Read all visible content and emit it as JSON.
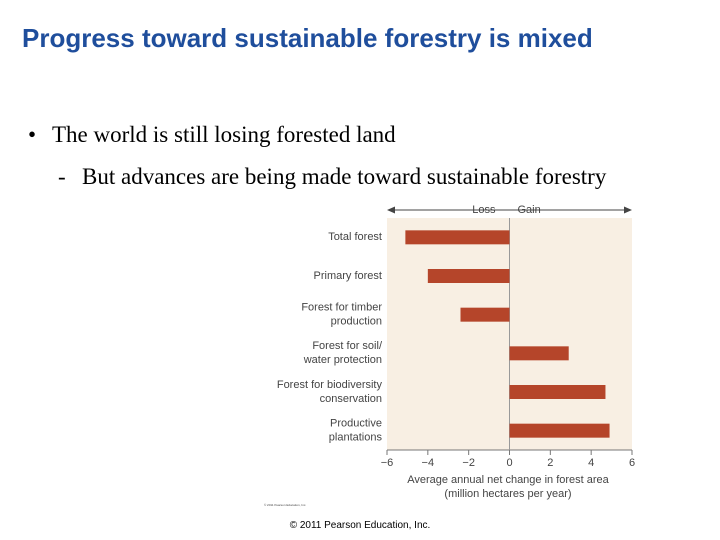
{
  "slide": {
    "title": "Progress toward sustainable forestry is mixed",
    "bullets": [
      {
        "marker": "•",
        "text": "The world is still losing forested land"
      },
      {
        "marker": "-",
        "text": "But advances are being made toward sustainable forestry"
      }
    ],
    "footer": "© 2011 Pearson Education, Inc."
  },
  "chart_data": {
    "type": "hbar",
    "categories": [
      [
        "Total forest"
      ],
      [
        "Primary forest"
      ],
      [
        "Forest for timber",
        "production"
      ],
      [
        "Forest for soil/",
        "water protection"
      ],
      [
        "Forest for biodiversity",
        "conservation"
      ],
      [
        "Productive",
        "plantations"
      ]
    ],
    "values": [
      -5.1,
      -4.0,
      -2.4,
      2.9,
      4.7,
      4.9
    ],
    "color": "#b5452a",
    "xlim": [
      -6,
      6
    ],
    "xticks": [
      {
        "value": -6,
        "label": "−6"
      },
      {
        "value": -4,
        "label": "−4"
      },
      {
        "value": -2,
        "label": "−2"
      },
      0,
      2,
      4,
      6
    ],
    "xlabel": [
      "Average annual net change in forest area",
      "(million hectares per year)"
    ],
    "annotations": [
      "Loss",
      "Gain"
    ],
    "note": "© 2011 Pearson Education, Inc."
  }
}
